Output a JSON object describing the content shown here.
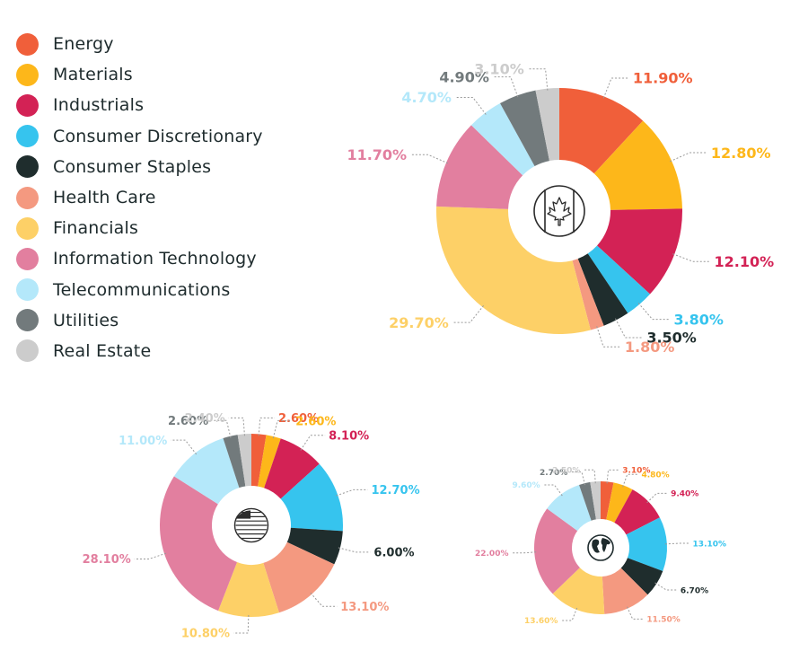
{
  "legend": [
    {
      "label": "Energy",
      "color": "#f05f3a"
    },
    {
      "label": "Materials",
      "color": "#fdb71a"
    },
    {
      "label": "Industrials",
      "color": "#d32255"
    },
    {
      "label": "Consumer Discretionary",
      "color": "#36c4ee"
    },
    {
      "label": "Consumer Staples",
      "color": "#1f2d2d"
    },
    {
      "label": "Health Care",
      "color": "#f49980"
    },
    {
      "label": "Financials",
      "color": "#fdd067"
    },
    {
      "label": "Information Technology",
      "color": "#e27f9f"
    },
    {
      "label": "Telecommunications",
      "color": "#b4e8fa"
    },
    {
      "label": "Utilities",
      "color": "#727a7c"
    },
    {
      "label": "Real Estate",
      "color": "#cccccc"
    }
  ],
  "chart_data": [
    {
      "type": "pie",
      "variant": "donut",
      "center_icon": "canada-flag-icon",
      "categories": [
        "Energy",
        "Materials",
        "Industrials",
        "Consumer Discretionary",
        "Consumer Staples",
        "Health Care",
        "Financials",
        "Information Technology",
        "Telecommunications",
        "Utilities",
        "Real Estate"
      ],
      "values": [
        11.9,
        12.8,
        12.1,
        3.8,
        3.5,
        1.8,
        29.7,
        11.7,
        4.7,
        4.9,
        3.1
      ],
      "labels": [
        "11.90%",
        "12.80%",
        "12.10%",
        "3.80%",
        "3.50%",
        "1.80%",
        "29.70%",
        "11.70%",
        "4.70%",
        "4.90%",
        "3.10%"
      ]
    },
    {
      "type": "pie",
      "variant": "donut",
      "center_icon": "us-flag-icon",
      "categories": [
        "Energy",
        "Materials",
        "Industrials",
        "Consumer Discretionary",
        "Consumer Staples",
        "Health Care",
        "Financials",
        "Information Technology",
        "Telecommunications",
        "Utilities",
        "Real Estate"
      ],
      "values": [
        2.6,
        2.6,
        8.1,
        12.7,
        6.0,
        13.1,
        10.8,
        28.1,
        11.0,
        2.6,
        2.4
      ],
      "labels": [
        "2.60%",
        "2.60%",
        "8.10%",
        "12.70%",
        "6.00%",
        "13.10%",
        "10.80%",
        "28.10%",
        "11.00%",
        "2.60%",
        "2.40%"
      ]
    },
    {
      "type": "pie",
      "variant": "donut",
      "center_icon": "globe-icon",
      "categories": [
        "Energy",
        "Materials",
        "Industrials",
        "Consumer Discretionary",
        "Consumer Staples",
        "Health Care",
        "Financials",
        "Information Technology",
        "Telecommunications",
        "Utilities",
        "Real Estate"
      ],
      "values": [
        3.1,
        4.8,
        9.4,
        13.1,
        6.7,
        11.5,
        13.6,
        22.0,
        9.6,
        2.7,
        2.5
      ],
      "labels": [
        "3.10%",
        "4.80%",
        "9.40%",
        "13.10%",
        "6.70%",
        "11.50%",
        "13.60%",
        "22.00%",
        "9.60%",
        "2.70%",
        "2.50%"
      ]
    }
  ]
}
